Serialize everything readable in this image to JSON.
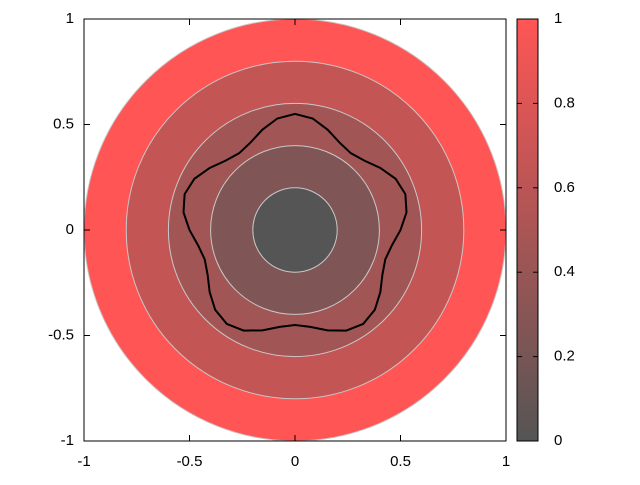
{
  "chart_data": {
    "type": "polar",
    "xlim": [
      -1,
      1
    ],
    "ylim": [
      -1,
      1
    ],
    "xticks": [
      -1,
      -0.5,
      0,
      0.5,
      1
    ],
    "yticks": [
      -1,
      -0.5,
      0,
      0.5,
      1
    ],
    "colormap": [
      "#555555",
      "#ff5555"
    ],
    "clim": [
      0,
      1
    ],
    "cticks": [
      0,
      0.2,
      0.4,
      0.6,
      0.8,
      1
    ],
    "rings": {
      "radii": [
        0.2,
        0.4,
        0.6,
        0.8,
        1
      ],
      "values": [
        0,
        0.25,
        0.45,
        0.65,
        1
      ]
    },
    "curve": {
      "color": "#000000",
      "theta": [
        0,
        9,
        18,
        27,
        36,
        45,
        54,
        63,
        72,
        81,
        90,
        99,
        108,
        117,
        126,
        135,
        144,
        153,
        162,
        171,
        180,
        189,
        198,
        207,
        216,
        225,
        234,
        243,
        252,
        261,
        270,
        279,
        288,
        297,
        306,
        315,
        324,
        333,
        342,
        351,
        360
      ],
      "r": [
        0.5,
        0.535,
        0.55,
        0.535,
        0.5,
        0.465,
        0.45,
        0.465,
        0.5,
        0.535,
        0.55,
        0.535,
        0.5,
        0.465,
        0.45,
        0.465,
        0.5,
        0.535,
        0.55,
        0.535,
        0.5,
        0.465,
        0.45,
        0.465,
        0.5,
        0.535,
        0.55,
        0.535,
        0.5,
        0.465,
        0.45,
        0.465,
        0.5,
        0.535,
        0.55,
        0.535,
        0.5,
        0.465,
        0.45,
        0.465,
        0.5
      ]
    }
  }
}
